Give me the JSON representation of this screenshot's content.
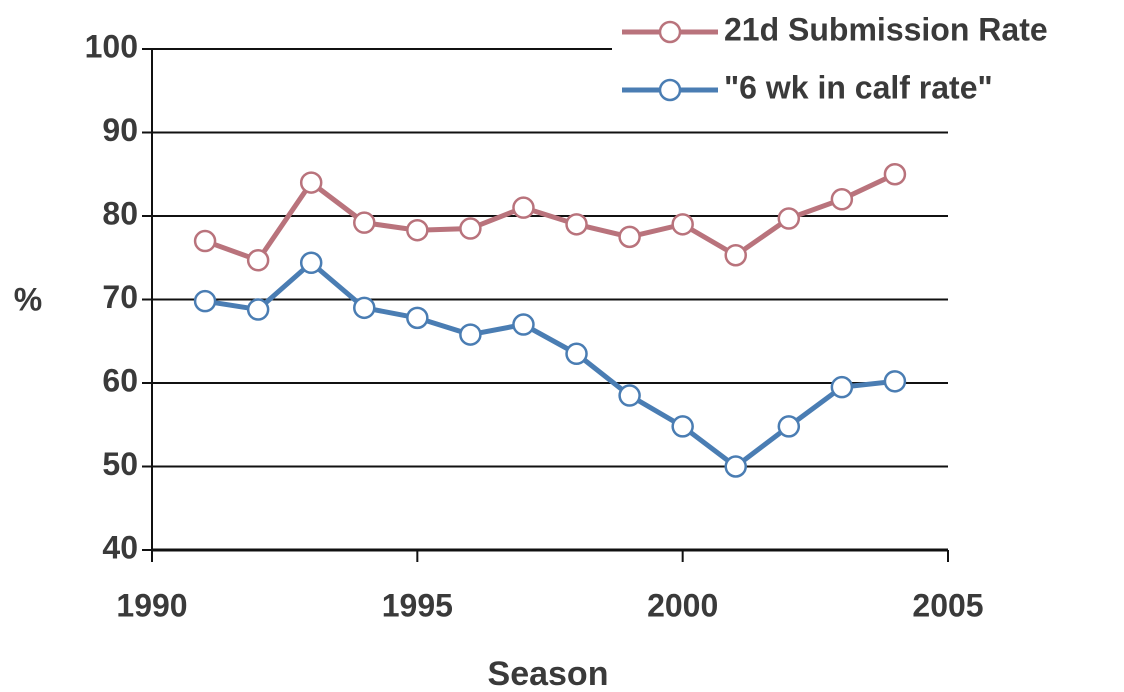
{
  "chart_data": {
    "type": "line",
    "x_label": "Season",
    "y_label": "%",
    "x": [
      1991,
      1992,
      1993,
      1994,
      1995,
      1996,
      1997,
      1998,
      1999,
      2000,
      2001,
      2002,
      2003,
      2004
    ],
    "series": [
      {
        "name": "21d Submission Rate",
        "color": "#b9737c",
        "values": [
          77,
          74.7,
          84,
          79.2,
          78.3,
          78.5,
          81,
          79,
          77.5,
          79,
          75.3,
          79.7,
          82,
          85
        ]
      },
      {
        "name": "\"6 wk in calf rate\"",
        "color": "#4a7db3",
        "values": [
          69.8,
          68.8,
          74.4,
          69,
          67.8,
          65.8,
          67,
          63.5,
          58.5,
          54.8,
          50,
          54.8,
          59.5,
          60.2
        ]
      }
    ],
    "xlim": [
      1990,
      2005
    ],
    "xticks": [
      1990,
      1995,
      2000,
      2005
    ],
    "ylim": [
      40,
      100
    ],
    "yticks": [
      40,
      50,
      60,
      70,
      80,
      90,
      100
    ],
    "grid": true,
    "legend": "top-right"
  }
}
